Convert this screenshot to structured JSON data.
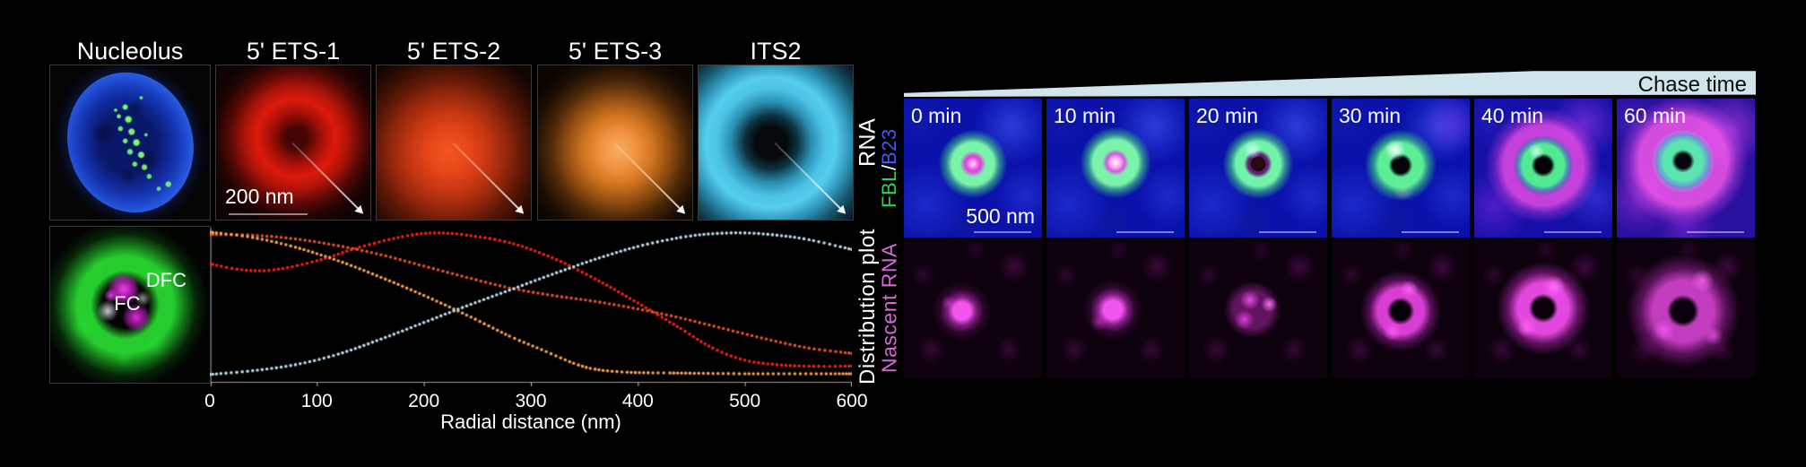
{
  "left_panel": {
    "row1_headers": [
      "Nucleolus",
      "5' ETS-1",
      "5' ETS-2",
      "5' ETS-3",
      "ITS2"
    ],
    "rna_label": "RNA",
    "scale_bar": "200 nm",
    "dfc_label": "DFC",
    "fc_label": "FC"
  },
  "chart_data": {
    "type": "scatter",
    "style": "dotted-curves",
    "title": "",
    "xlabel": "Radial distance (nm)",
    "ylabel": "Distribution plot",
    "xlim": [
      0,
      600
    ],
    "xticks": [
      0,
      100,
      200,
      300,
      400,
      500,
      600
    ],
    "grid": false,
    "legend": "none",
    "y_normalized": true,
    "series": [
      {
        "name": "5' ETS-1",
        "color": "#f2230f",
        "points": [
          [
            0,
            0.76
          ],
          [
            30,
            0.72
          ],
          [
            60,
            0.72
          ],
          [
            100,
            0.78
          ],
          [
            140,
            0.87
          ],
          [
            180,
            0.94
          ],
          [
            210,
            0.965
          ],
          [
            240,
            0.95
          ],
          [
            280,
            0.9
          ],
          [
            320,
            0.8
          ],
          [
            360,
            0.66
          ],
          [
            400,
            0.5
          ],
          [
            440,
            0.33
          ],
          [
            470,
            0.2
          ],
          [
            500,
            0.12
          ],
          [
            530,
            0.09
          ],
          [
            560,
            0.08
          ],
          [
            600,
            0.08
          ]
        ]
      },
      {
        "name": "5' ETS-2",
        "color": "#e2512a",
        "points": [
          [
            0,
            0.955
          ],
          [
            40,
            0.95
          ],
          [
            80,
            0.925
          ],
          [
            120,
            0.88
          ],
          [
            160,
            0.82
          ],
          [
            200,
            0.745
          ],
          [
            240,
            0.67
          ],
          [
            280,
            0.6
          ],
          [
            320,
            0.55
          ],
          [
            360,
            0.51
          ],
          [
            400,
            0.46
          ],
          [
            440,
            0.4
          ],
          [
            480,
            0.33
          ],
          [
            520,
            0.26
          ],
          [
            560,
            0.2
          ],
          [
            600,
            0.165
          ]
        ]
      },
      {
        "name": "5' ETS-3",
        "color": "#f5a14b",
        "points": [
          [
            0,
            0.97
          ],
          [
            40,
            0.935
          ],
          [
            80,
            0.87
          ],
          [
            120,
            0.78
          ],
          [
            160,
            0.67
          ],
          [
            200,
            0.55
          ],
          [
            240,
            0.42
          ],
          [
            280,
            0.28
          ],
          [
            310,
            0.19
          ],
          [
            340,
            0.1
          ],
          [
            360,
            0.06
          ],
          [
            390,
            0.04
          ],
          [
            430,
            0.035
          ],
          [
            500,
            0.03
          ],
          [
            600,
            0.03
          ]
        ]
      },
      {
        "name": "ITS2",
        "color": "#b9d9ea",
        "points": [
          [
            0,
            0.025
          ],
          [
            40,
            0.05
          ],
          [
            80,
            0.09
          ],
          [
            120,
            0.16
          ],
          [
            160,
            0.26
          ],
          [
            200,
            0.37
          ],
          [
            240,
            0.48
          ],
          [
            280,
            0.585
          ],
          [
            320,
            0.69
          ],
          [
            360,
            0.79
          ],
          [
            400,
            0.875
          ],
          [
            440,
            0.935
          ],
          [
            470,
            0.96
          ],
          [
            500,
            0.965
          ],
          [
            530,
            0.95
          ],
          [
            560,
            0.92
          ],
          [
            600,
            0.855
          ]
        ]
      }
    ]
  },
  "right_panel": {
    "banner": "Chase time",
    "banner_color": "#cfe5eb",
    "time_labels": [
      "0 min",
      "10 min",
      "20 min",
      "30 min",
      "40 min",
      "60 min"
    ],
    "fbl_b23": {
      "fbl": "FBL",
      "slash": " / ",
      "b23": "B23",
      "fbl_color": "#2fd14f",
      "b23_color": "#4257f5"
    },
    "scale_bar": "500 nm",
    "nascent_rna_label": "Nascent RNA",
    "nascent_rna_color": "#d867d8"
  }
}
